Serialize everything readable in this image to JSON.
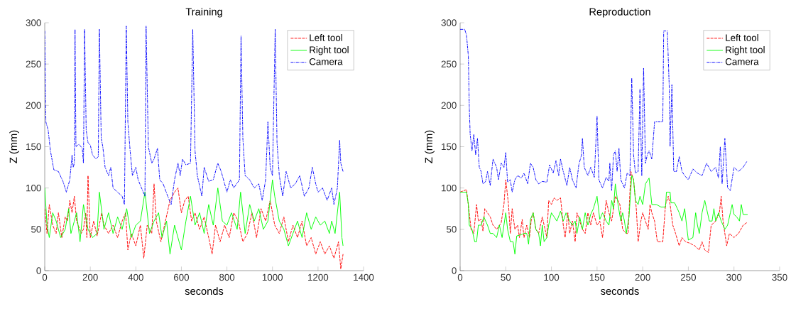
{
  "chart_data": [
    {
      "type": "line",
      "title": "Training",
      "xlabel": "seconds",
      "ylabel": "Z (mm)",
      "xlim": [
        0,
        1400
      ],
      "ylim": [
        0,
        300
      ],
      "xticks": [
        0,
        200,
        400,
        600,
        800,
        1000,
        1200,
        1400
      ],
      "yticks": [
        0,
        50,
        100,
        150,
        200,
        250,
        300
      ],
      "legend": "top right",
      "series": [
        {
          "name": "Left tool",
          "color": "#ff0000",
          "line_style": "dashed",
          "x": [
            0,
            10,
            20,
            35,
            50,
            60,
            75,
            90,
            100,
            110,
            120,
            130,
            140,
            160,
            170,
            180,
            185,
            190,
            200,
            215,
            230,
            250,
            260,
            280,
            300,
            320,
            340,
            355,
            365,
            380,
            400,
            420,
            435,
            450,
            470,
            480,
            490,
            510,
            530,
            550,
            570,
            585,
            600,
            615,
            630,
            645,
            660,
            680,
            700,
            720,
            735,
            750,
            770,
            790,
            810,
            830,
            850,
            870,
            890,
            910,
            930,
            950,
            970,
            990,
            1010,
            1030,
            1050,
            1070,
            1090,
            1110,
            1130,
            1150,
            1170,
            1190,
            1210,
            1230,
            1250,
            1270,
            1290,
            1300,
            1310
          ],
          "values": [
            75,
            45,
            80,
            55,
            45,
            70,
            40,
            65,
            60,
            85,
            70,
            90,
            60,
            45,
            50,
            70,
            40,
            115,
            40,
            60,
            42,
            70,
            55,
            45,
            55,
            40,
            60,
            70,
            25,
            45,
            30,
            55,
            15,
            55,
            45,
            105,
            60,
            35,
            60,
            85,
            95,
            100,
            70,
            85,
            90,
            60,
            70,
            50,
            65,
            40,
            20,
            55,
            35,
            55,
            40,
            70,
            60,
            35,
            45,
            70,
            40,
            75,
            60,
            85,
            55,
            45,
            65,
            35,
            55,
            40,
            60,
            30,
            40,
            20,
            35,
            20,
            30,
            15,
            35,
            2,
            20
          ]
        },
        {
          "name": "Right tool",
          "color": "#00ff00",
          "line_style": "solid",
          "x": [
            0,
            10,
            20,
            35,
            50,
            70,
            90,
            105,
            115,
            130,
            140,
            155,
            170,
            190,
            210,
            230,
            240,
            260,
            280,
            300,
            320,
            340,
            360,
            380,
            400,
            420,
            440,
            460,
            480,
            500,
            515,
            535,
            550,
            570,
            580,
            600,
            620,
            640,
            660,
            680,
            700,
            720,
            740,
            760,
            780,
            800,
            820,
            845,
            860,
            880,
            900,
            920,
            940,
            960,
            980,
            1000,
            1010,
            1030,
            1050,
            1070,
            1090,
            1110,
            1130,
            1150,
            1170,
            1190,
            1210,
            1230,
            1250,
            1260,
            1275,
            1295,
            1305,
            1310
          ],
          "values": [
            100,
            55,
            40,
            70,
            60,
            40,
            50,
            75,
            45,
            60,
            70,
            35,
            80,
            50,
            40,
            45,
            95,
            50,
            70,
            45,
            65,
            50,
            75,
            40,
            55,
            60,
            95,
            45,
            60,
            70,
            40,
            60,
            20,
            55,
            45,
            25,
            60,
            90,
            55,
            70,
            45,
            80,
            55,
            100,
            60,
            55,
            70,
            50,
            95,
            45,
            80,
            60,
            75,
            50,
            60,
            110,
            90,
            60,
            50,
            30,
            45,
            60,
            40,
            70,
            50,
            65,
            55,
            60,
            45,
            60,
            45,
            95,
            40,
            30
          ]
        },
        {
          "name": "Camera",
          "color": "#0000ff",
          "line_style": "dashdot",
          "x": [
            0,
            5,
            15,
            25,
            40,
            60,
            80,
            95,
            110,
            120,
            125,
            130,
            133,
            137,
            150,
            165,
            170,
            175,
            182,
            190,
            200,
            210,
            225,
            235,
            240,
            248,
            255,
            265,
            280,
            290,
            300,
            320,
            340,
            350,
            358,
            365,
            375,
            385,
            400,
            410,
            425,
            440,
            445,
            455,
            470,
            480,
            495,
            505,
            520,
            540,
            555,
            570,
            585,
            595,
            605,
            620,
            640,
            650,
            660,
            670,
            690,
            700,
            720,
            740,
            760,
            775,
            790,
            800,
            815,
            830,
            855,
            862,
            870,
            880,
            900,
            920,
            940,
            955,
            970,
            980,
            990,
            1000,
            1012,
            1020,
            1030,
            1045,
            1060,
            1080,
            1100,
            1120,
            1140,
            1160,
            1175,
            1190,
            1200,
            1220,
            1240,
            1260,
            1270,
            1285,
            1295,
            1300,
            1310
          ],
          "values": [
            290,
            180,
            170,
            145,
            122,
            120,
            108,
            95,
            110,
            140,
            125,
            130,
            292,
            150,
            153,
            148,
            130,
            292,
            170,
            155,
            152,
            140,
            135,
            138,
            292,
            160,
            150,
            125,
            115,
            125,
            100,
            95,
            90,
            80,
            296,
            180,
            145,
            115,
            125,
            110,
            100,
            90,
            296,
            150,
            130,
            135,
            148,
            110,
            105,
            90,
            80,
            110,
            130,
            115,
            135,
            128,
            130,
            292,
            145,
            115,
            90,
            125,
            108,
            110,
            130,
            120,
            105,
            95,
            110,
            100,
            110,
            284,
            160,
            115,
            110,
            100,
            105,
            85,
            110,
            180,
            125,
            115,
            292,
            155,
            115,
            90,
            120,
            100,
            105,
            115,
            90,
            100,
            125,
            105,
            95,
            100,
            85,
            100,
            80,
            100,
            158,
            130,
            120
          ]
        }
      ]
    },
    {
      "type": "line",
      "title": "Reproduction",
      "xlabel": "seconds",
      "ylabel": "Z (mm)",
      "xlim": [
        0,
        350
      ],
      "ylim": [
        0,
        300
      ],
      "xticks": [
        0,
        50,
        100,
        150,
        200,
        250,
        300,
        350
      ],
      "yticks": [
        0,
        50,
        100,
        150,
        200,
        250,
        300
      ],
      "legend": "top right",
      "series": [
        {
          "name": "Left tool",
          "color": "#ff0000",
          "line_style": "dashed",
          "x": [
            0,
            7,
            9,
            12,
            15,
            18,
            20,
            23,
            25,
            27,
            30,
            33,
            36,
            40,
            45,
            48,
            50,
            53,
            55,
            57,
            60,
            63,
            65,
            68,
            70,
            73,
            76,
            78,
            80,
            83,
            86,
            90,
            95,
            97,
            100,
            103,
            106,
            110,
            113,
            115,
            118,
            120,
            123,
            126,
            128,
            131,
            134,
            137,
            140,
            143,
            146,
            150,
            153,
            156,
            160,
            163,
            166,
            168,
            170,
            173,
            175,
            178,
            182,
            184,
            187,
            190,
            193,
            195,
            198,
            200,
            203,
            206,
            208,
            210,
            213,
            216,
            222,
            225,
            228,
            230,
            233,
            236,
            240,
            243,
            247,
            252,
            257,
            262,
            265,
            268,
            272,
            275,
            280,
            284,
            286,
            288,
            292,
            295,
            300,
            305,
            310,
            314
          ],
          "values": [
            95,
            98,
            80,
            50,
            45,
            80,
            60,
            62,
            48,
            75,
            70,
            65,
            55,
            50,
            58,
            80,
            110,
            80,
            45,
            75,
            50,
            55,
            40,
            62,
            40,
            55,
            40,
            62,
            70,
            50,
            45,
            65,
            40,
            85,
            80,
            88,
            85,
            88,
            55,
            40,
            70,
            45,
            60,
            35,
            70,
            60,
            50,
            45,
            70,
            55,
            70,
            55,
            60,
            40,
            85,
            70,
            60,
            75,
            90,
            85,
            80,
            50,
            45,
            45,
            120,
            110,
            75,
            35,
            60,
            70,
            60,
            50,
            80,
            70,
            60,
            35,
            35,
            80,
            90,
            80,
            55,
            45,
            30,
            40,
            35,
            33,
            30,
            25,
            35,
            25,
            22,
            55,
            60,
            70,
            90,
            60,
            30,
            45,
            40,
            45,
            55,
            58
          ]
        },
        {
          "name": "Right tool",
          "color": "#00ff00",
          "line_style": "solid",
          "x": [
            0,
            7,
            9,
            10,
            13,
            16,
            18,
            20,
            23,
            26,
            30,
            33,
            36,
            40,
            43,
            46,
            50,
            52,
            55,
            58,
            60,
            62,
            66,
            70,
            73,
            75,
            77,
            80,
            83,
            86,
            88,
            90,
            92,
            95,
            97,
            100,
            103,
            106,
            110,
            113,
            116,
            120,
            123,
            126,
            128,
            131,
            134,
            137,
            140,
            143,
            146,
            150,
            153,
            156,
            160,
            163,
            166,
            168,
            170,
            173,
            176,
            178,
            180,
            182,
            185,
            188,
            190,
            192,
            195,
            197,
            200,
            203,
            207,
            210,
            215,
            220,
            225,
            226,
            230,
            231,
            235,
            238,
            240,
            243,
            246,
            248,
            250,
            255,
            258,
            260,
            262,
            265,
            268,
            270,
            273,
            276,
            278,
            280,
            283,
            286,
            290,
            293,
            296,
            298,
            300,
            303,
            306,
            308,
            310,
            315
          ],
          "values": [
            95,
            95,
            80,
            55,
            50,
            35,
            35,
            55,
            55,
            65,
            55,
            45,
            45,
            40,
            55,
            40,
            70,
            50,
            35,
            35,
            20,
            42,
            43,
            45,
            45,
            32,
            62,
            70,
            50,
            45,
            30,
            55,
            35,
            40,
            55,
            70,
            65,
            60,
            72,
            60,
            70,
            60,
            55,
            60,
            45,
            65,
            50,
            70,
            55,
            68,
            75,
            90,
            62,
            70,
            60,
            55,
            85,
            75,
            105,
            80,
            60,
            70,
            60,
            45,
            65,
            115,
            110,
            85,
            80,
            90,
            80,
            105,
            112,
            80,
            80,
            77,
            77,
            95,
            95,
            82,
            82,
            75,
            70,
            60,
            75,
            55,
            37,
            40,
            70,
            55,
            45,
            70,
            85,
            75,
            60,
            60,
            75,
            60,
            70,
            60,
            50,
            55,
            70,
            80,
            68,
            65,
            60,
            80,
            68,
            68
          ]
        },
        {
          "name": "Camera",
          "color": "#0000ff",
          "line_style": "dashdot",
          "x": [
            0,
            5,
            7,
            9,
            10,
            11,
            13,
            15,
            17,
            19,
            21,
            23,
            25,
            28,
            30,
            33,
            36,
            40,
            42,
            45,
            48,
            50,
            52,
            55,
            57,
            60,
            63,
            67,
            70,
            74,
            77,
            80,
            83,
            86,
            90,
            95,
            98,
            102,
            105,
            108,
            110,
            113,
            117,
            120,
            123,
            127,
            130,
            133,
            134,
            136,
            140,
            143,
            147,
            150,
            152,
            156,
            160,
            163,
            164,
            166,
            168,
            170,
            172,
            174,
            176,
            180,
            183,
            186,
            188,
            190,
            192,
            195,
            197,
            199,
            201,
            203,
            205,
            207,
            210,
            213,
            215,
            222,
            223,
            227,
            229,
            230,
            232,
            234,
            237,
            240,
            243,
            246,
            250,
            255,
            260,
            265,
            270,
            275,
            280,
            283,
            285,
            287,
            290,
            293,
            296,
            300,
            305,
            310,
            314
          ],
          "values": [
            292,
            292,
            285,
            260,
            200,
            165,
            145,
            165,
            140,
            160,
            125,
            120,
            105,
            108,
            120,
            103,
            135,
            125,
            110,
            130,
            125,
            143,
            107,
            110,
            95,
            110,
            115,
            112,
            118,
            105,
            130,
            125,
            110,
            105,
            108,
            107,
            128,
            118,
            133,
            115,
            135,
            120,
            103,
            125,
            110,
            100,
            128,
            140,
            160,
            125,
            115,
            125,
            113,
            187,
            110,
            100,
            113,
            108,
            130,
            97,
            140,
            145,
            120,
            148,
            110,
            100,
            118,
            115,
            233,
            140,
            118,
            120,
            220,
            115,
            245,
            130,
            140,
            145,
            135,
            180,
            180,
            180,
            290,
            290,
            225,
            150,
            225,
            120,
            120,
            138,
            120,
            115,
            110,
            123,
            118,
            115,
            130,
            120,
            125,
            112,
            150,
            105,
            160,
            100,
            97,
            125,
            120,
            125,
            132
          ]
        }
      ]
    }
  ]
}
